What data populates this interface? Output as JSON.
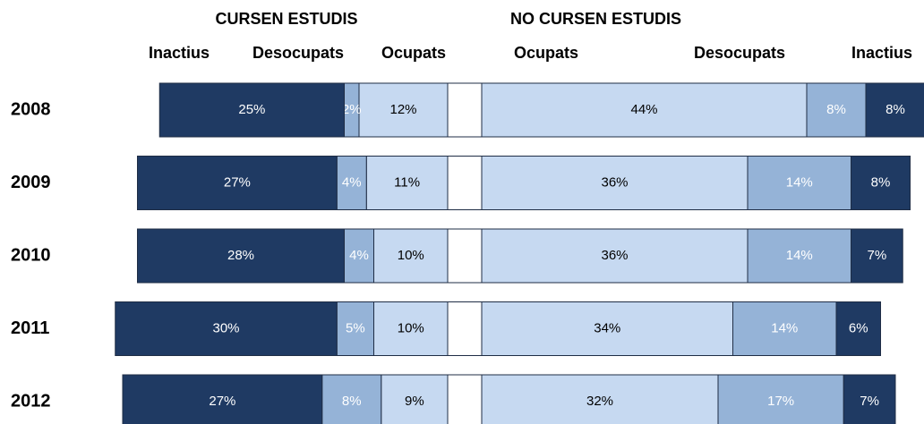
{
  "chart_data": {
    "type": "diverging_bar",
    "group_labels": [
      "CURSEN ESTUDIS",
      "NO CURSEN ESTUDIS"
    ],
    "categories": [
      "2008",
      "2009",
      "2010",
      "2011",
      "2012"
    ],
    "series": [
      {
        "name": "Inactius",
        "side": "left",
        "color": "#1f3a63",
        "text_color": "#ffffff",
        "values": [
          25,
          27,
          28,
          30,
          27
        ],
        "value_labels": [
          "25%",
          "27%",
          "28%",
          "30%",
          "27%"
        ]
      },
      {
        "name": "Desocupats",
        "side": "left",
        "color": "#95b3d7",
        "text_color": "#ffffff",
        "values": [
          2,
          4,
          4,
          5,
          8
        ],
        "value_labels": [
          "2%",
          "4%",
          "4%",
          "5%",
          "8%"
        ]
      },
      {
        "name": "Ocupats",
        "side": "left",
        "color": "#c6d9f1",
        "text_color": "#000000",
        "values": [
          12,
          11,
          10,
          10,
          9
        ],
        "value_labels": [
          "12%",
          "11%",
          "10%",
          "10%",
          "9%"
        ]
      },
      {
        "name": "Ocupats",
        "side": "right",
        "color": "#c6d9f1",
        "text_color": "#000000",
        "values": [
          44,
          36,
          36,
          34,
          32
        ],
        "value_labels": [
          "44%",
          "36%",
          "36%",
          "34%",
          "32%"
        ]
      },
      {
        "name": "Desocupats",
        "side": "right",
        "color": "#95b3d7",
        "text_color": "#ffffff",
        "values": [
          8,
          14,
          14,
          14,
          17
        ],
        "value_labels": [
          "8%",
          "14%",
          "14%",
          "14%",
          "17%"
        ]
      },
      {
        "name": "Inactius",
        "side": "right",
        "color": "#1f3a63",
        "text_color": "#ffffff",
        "values": [
          8,
          8,
          7,
          6,
          7
        ],
        "value_labels": [
          "8%",
          "8%",
          "7%",
          "6%",
          "7%"
        ]
      }
    ]
  }
}
